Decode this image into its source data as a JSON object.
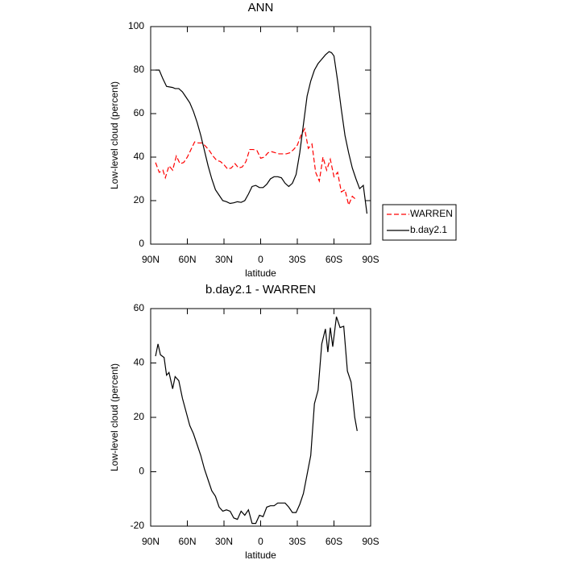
{
  "chart_data": [
    {
      "type": "line",
      "title": "ANN",
      "xlabel": "latitude",
      "ylabel": "Low-level cloud (percent)",
      "xlim": [
        90,
        -90
      ],
      "xticks": [
        {
          "value": 90,
          "label": "90N"
        },
        {
          "value": 60,
          "label": "60N"
        },
        {
          "value": 30,
          "label": "30N"
        },
        0,
        {
          "value": -30,
          "label": "30S"
        },
        {
          "value": -60,
          "label": "60S"
        },
        {
          "value": -90,
          "label": "90S"
        }
      ],
      "ylim": [
        0,
        100
      ],
      "yticks": [
        0,
        20,
        40,
        60,
        80,
        100
      ],
      "legend": "right",
      "series": [
        {
          "name": "WARREN",
          "color": "#ff0000",
          "style": "dashed",
          "x": [
            86,
            83,
            80,
            78,
            75,
            72,
            69,
            66,
            63,
            60,
            57,
            54,
            51,
            48,
            45,
            42,
            39,
            36,
            33,
            30,
            27,
            24,
            21,
            18,
            15,
            12,
            9,
            6,
            3,
            0,
            -3,
            -6,
            -9,
            -12,
            -15,
            -18,
            -21,
            -24,
            -27,
            -30,
            -33,
            -36,
            -39,
            -42,
            -45,
            -48,
            -51,
            -54,
            -57,
            -60,
            -63,
            -66,
            -69,
            -72,
            -75,
            -78
          ],
          "values": [
            37.5,
            33,
            34,
            30.5,
            36,
            34,
            40.5,
            37,
            37.5,
            40,
            43.5,
            47,
            46.5,
            46.5,
            45,
            43,
            40.5,
            38.5,
            38,
            36.5,
            34.5,
            35,
            37,
            35,
            35.5,
            38,
            43.5,
            43.5,
            43,
            39.5,
            40,
            42,
            42.5,
            42,
            41.5,
            41.5,
            41.5,
            42,
            43.5,
            45.5,
            50,
            53,
            44,
            46,
            33,
            29,
            40,
            34,
            39,
            31,
            33,
            24,
            25,
            18,
            22,
            20.5
          ]
        },
        {
          "name": "b.day2.1",
          "color": "#000000",
          "style": "solid",
          "x": [
            86,
            83,
            80,
            77,
            72,
            70,
            67,
            64,
            61,
            58,
            55,
            52,
            49,
            46,
            43,
            40,
            37,
            34,
            31,
            28,
            25,
            22,
            19,
            16,
            13,
            10,
            7,
            4,
            1,
            -2,
            -5,
            -8,
            -11,
            -14,
            -17,
            -20,
            -23,
            -26,
            -29,
            -32,
            -35,
            -38,
            -41,
            -44,
            -47,
            -50,
            -53,
            -56,
            -58,
            -60,
            -63,
            -66,
            -69,
            -72,
            -75,
            -78,
            -81,
            -84,
            -87
          ],
          "values": [
            80,
            80,
            76,
            72.5,
            72,
            71.5,
            71.5,
            70,
            67.5,
            65,
            61,
            56,
            50,
            43,
            36,
            30,
            25,
            22.5,
            20,
            19.5,
            18.7,
            19,
            19.5,
            19.2,
            20,
            23,
            26.5,
            27,
            26,
            26,
            27.5,
            30,
            31,
            31,
            30.5,
            28,
            26.5,
            28,
            32,
            42,
            55,
            68,
            75,
            80,
            83,
            85,
            87,
            88.5,
            88,
            86.5,
            75,
            62,
            50,
            42,
            35,
            30,
            25.5,
            27,
            14
          ]
        }
      ]
    },
    {
      "type": "line",
      "title": "b.day2.1 - WARREN",
      "xlabel": "latitude",
      "ylabel": "Low-level cloud (percent)",
      "xlim": [
        90,
        -90
      ],
      "xticks": [
        {
          "value": 90,
          "label": "90N"
        },
        {
          "value": 60,
          "label": "60N"
        },
        {
          "value": 30,
          "label": "30N"
        },
        0,
        {
          "value": -30,
          "label": "30S"
        },
        {
          "value": -60,
          "label": "60S"
        },
        {
          "value": -90,
          "label": "90S"
        }
      ],
      "ylim": [
        -20,
        60
      ],
      "yticks": [
        -20,
        0,
        20,
        40,
        60
      ],
      "series": [
        {
          "color": "#000000",
          "style": "solid",
          "x": [
            86,
            84,
            82,
            79,
            77,
            75,
            72,
            70,
            67,
            64,
            61,
            58,
            55,
            52,
            49,
            46,
            43,
            40,
            37,
            34,
            31,
            28,
            25,
            22,
            19,
            16,
            13,
            10,
            7,
            4,
            1,
            -2,
            -5,
            -8,
            -11,
            -14,
            -17,
            -20,
            -23,
            -26,
            -29,
            -32,
            -35,
            -38,
            -41,
            -44,
            -47,
            -50,
            -53,
            -55,
            -57,
            -59,
            -62,
            -65,
            -68,
            -71,
            -74,
            -77,
            -79
          ],
          "values": [
            42.5,
            47,
            43,
            42,
            35.5,
            36.5,
            30.5,
            35,
            33.5,
            27,
            22,
            17,
            14,
            10,
            6,
            1,
            -3,
            -7,
            -9,
            -13,
            -14.5,
            -14,
            -14.5,
            -17,
            -17.5,
            -14.5,
            -16,
            -14,
            -19,
            -19,
            -16,
            -16.5,
            -13,
            -12.5,
            -12.5,
            -11.5,
            -11.5,
            -11.5,
            -13,
            -15,
            -15,
            -12,
            -8,
            -1,
            6,
            25,
            30,
            47,
            52.5,
            44,
            53,
            46,
            57,
            53,
            53.5,
            37,
            33,
            20,
            15
          ]
        }
      ]
    }
  ]
}
